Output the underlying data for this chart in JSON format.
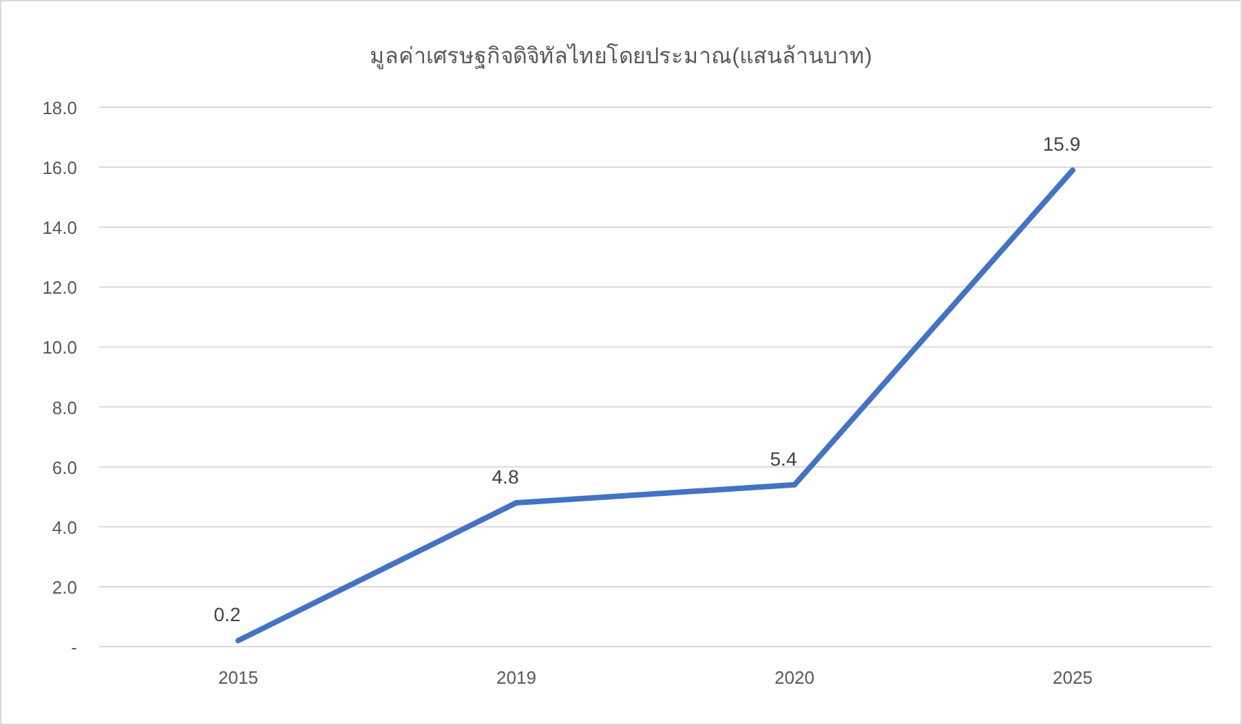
{
  "chart_data": {
    "type": "line",
    "title": "มูลค่าเศรษฐกิจดิจิทัลไทยโดยประมาณ(แสนล้านบาท)",
    "categories": [
      "2015",
      "2019",
      "2020",
      "2025"
    ],
    "values": [
      0.2,
      4.8,
      5.4,
      15.9
    ],
    "color": "#4472c4",
    "ylim": [
      0,
      18
    ],
    "yticks": [
      {
        "value": 0,
        "label": "-"
      },
      {
        "value": 2,
        "label": "2.0"
      },
      {
        "value": 4,
        "label": "4.0"
      },
      {
        "value": 6,
        "label": "6.0"
      },
      {
        "value": 8,
        "label": "8.0"
      },
      {
        "value": 10,
        "label": "10.0"
      },
      {
        "value": 12,
        "label": "12.0"
      },
      {
        "value": 14,
        "label": "14.0"
      },
      {
        "value": 16,
        "label": "16.0"
      },
      {
        "value": 18,
        "label": "18.0"
      }
    ],
    "grid": "y",
    "data_labels": true
  }
}
